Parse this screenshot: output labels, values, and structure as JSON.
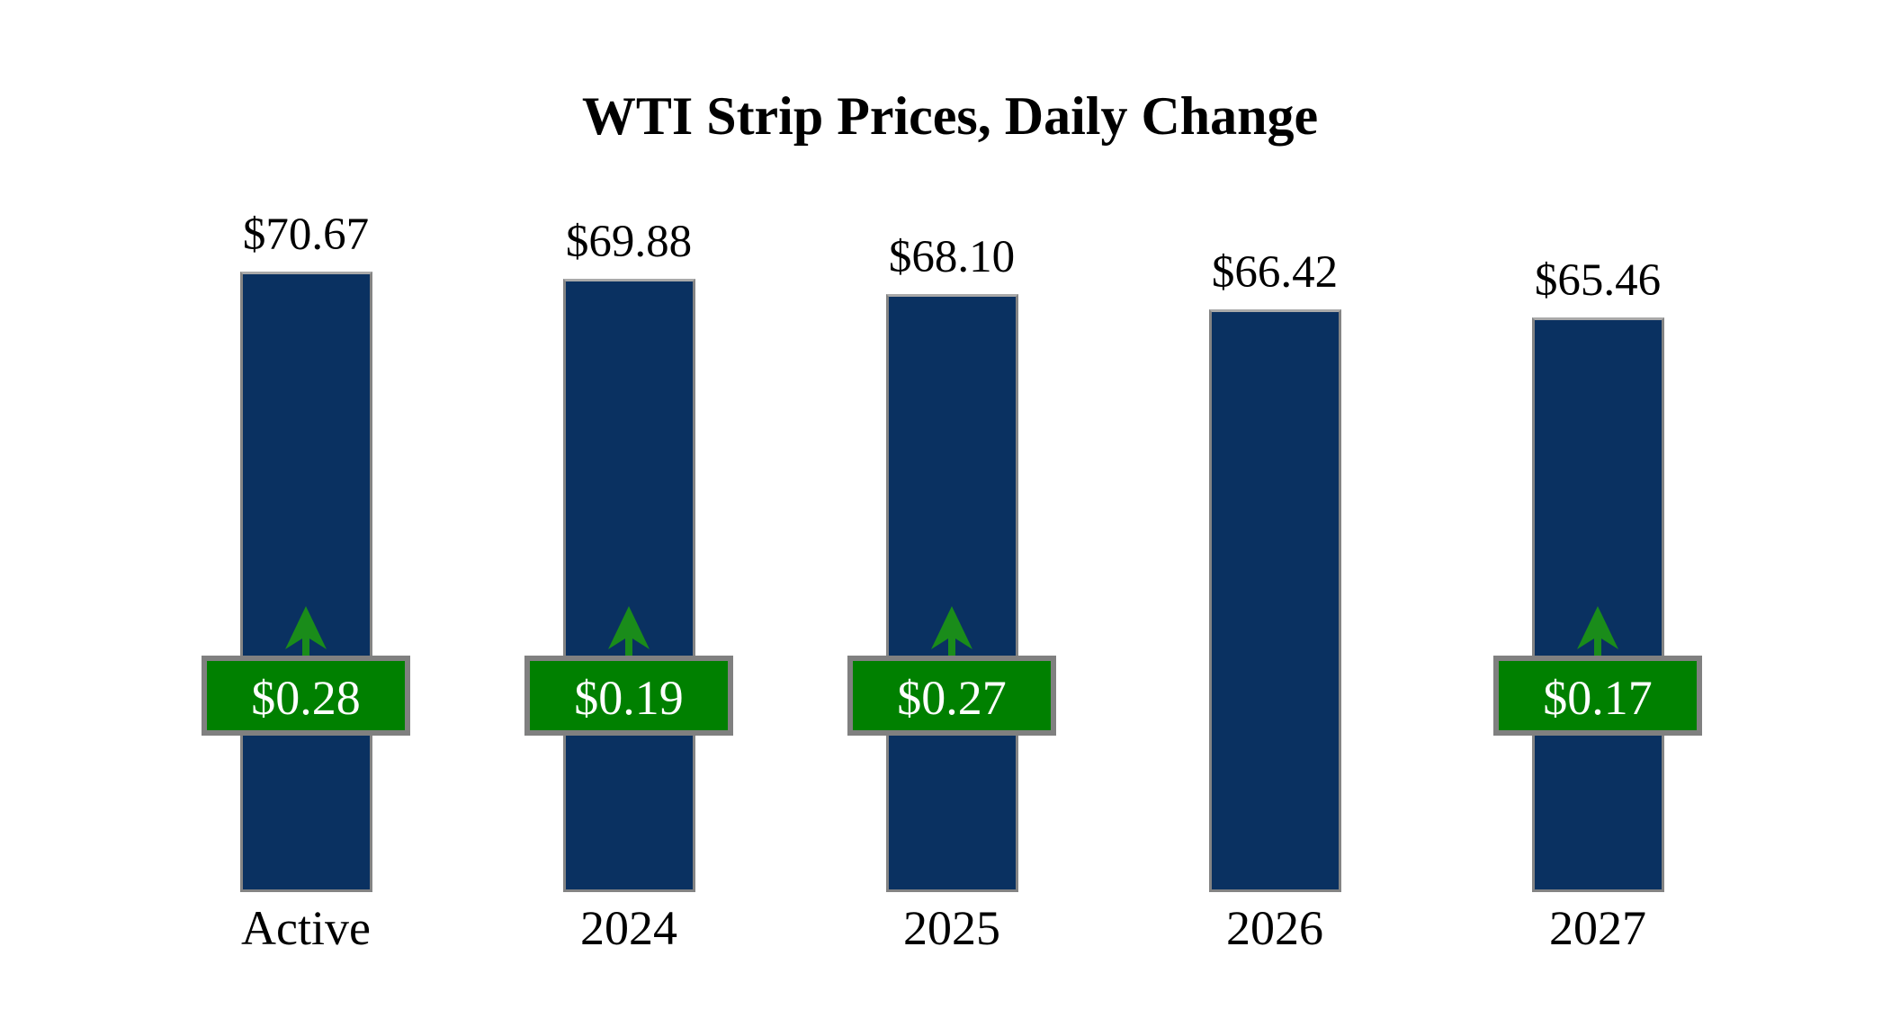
{
  "title": "WTI Strip Prices, Daily Change",
  "colors": {
    "background": "#FFFFFF",
    "bar_fill": "#0A3161",
    "bar_border": "#848484",
    "badge_fill": "#008000",
    "badge_border": "#808080",
    "badge_text": "#FFFFFF",
    "arrow_green": "#1A8C1A",
    "label_text": "#000000"
  },
  "chart_data": {
    "type": "bar",
    "title": "WTI Strip Prices, Daily Change",
    "categories": [
      "Active",
      "2024",
      "2025",
      "2026",
      "2027"
    ],
    "values": [
      70.67,
      69.88,
      68.1,
      66.42,
      65.46
    ],
    "value_labels": [
      "$70.67",
      "$69.88",
      "$68.10",
      "$66.42",
      "$65.46"
    ],
    "daily_changes": [
      0.28,
      0.19,
      0.27,
      null,
      0.17
    ],
    "change_labels": [
      "$0.28",
      "$0.19",
      "$0.27",
      null,
      "$0.17"
    ],
    "change_directions": [
      "up",
      "up",
      "up",
      null,
      "up"
    ],
    "ylim": [
      0,
      72.4
    ],
    "grid": false,
    "axes_visible": false,
    "legend": "none",
    "bar_color": "#0A3161",
    "badge_color": "#008000"
  }
}
